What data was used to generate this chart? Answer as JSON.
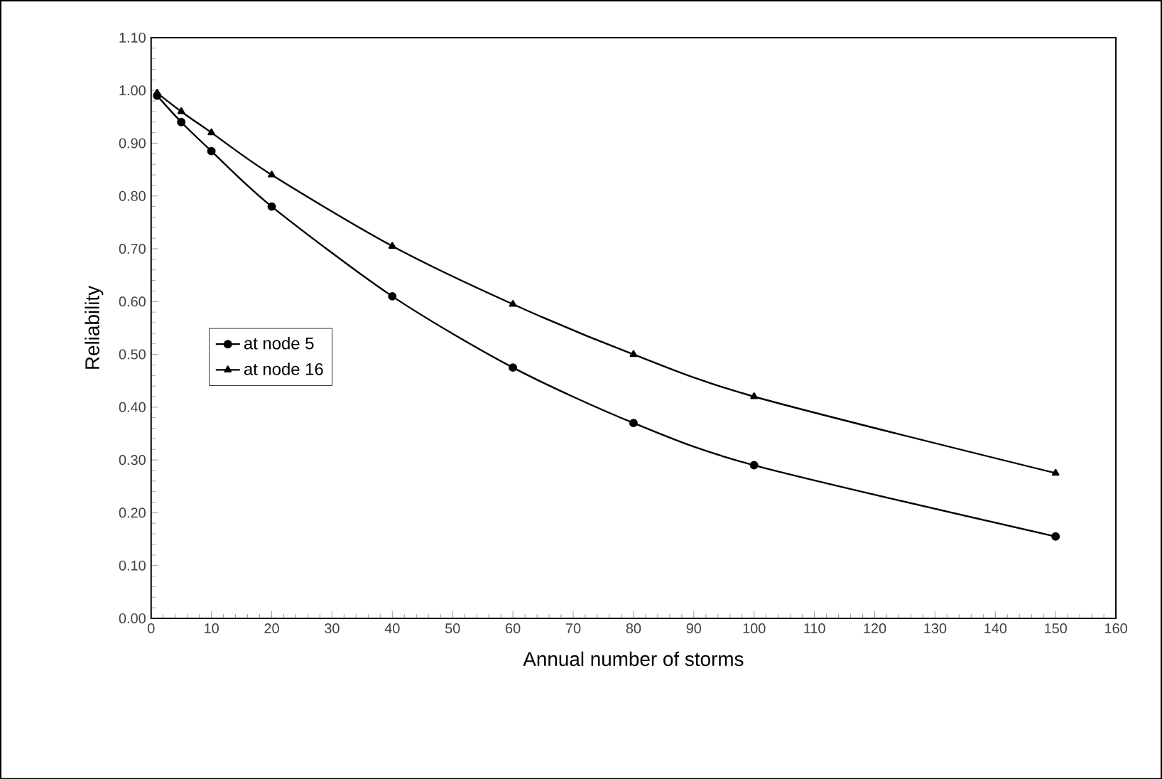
{
  "chart_data": {
    "type": "line",
    "xlabel": "Annual number of storms",
    "ylabel": "Reliability",
    "x": [
      1,
      5,
      10,
      20,
      40,
      60,
      80,
      100,
      150
    ],
    "series": [
      {
        "name": "at node 5",
        "color": "#000000",
        "marker": "circle",
        "values": [
          0.99,
          0.94,
          0.885,
          0.78,
          0.61,
          0.475,
          0.37,
          0.29,
          0.155
        ]
      },
      {
        "name": "at node 16",
        "color": "#000000",
        "marker": "triangle",
        "values": [
          0.995,
          0.96,
          0.92,
          0.84,
          0.705,
          0.595,
          0.5,
          0.42,
          0.275
        ]
      }
    ],
    "xlim": [
      0,
      160
    ],
    "xticks": [
      0,
      10,
      20,
      30,
      40,
      50,
      60,
      70,
      80,
      90,
      100,
      110,
      120,
      130,
      140,
      150,
      160
    ],
    "ylim": [
      0,
      1.1
    ],
    "yticks": [
      {
        "value": 0,
        "label": "0.00"
      },
      {
        "value": 0.1,
        "label": "0.10"
      },
      {
        "value": 0.2,
        "label": "0.20"
      },
      {
        "value": 0.3,
        "label": "0.30"
      },
      {
        "value": 0.4,
        "label": "0.40"
      },
      {
        "value": 0.5,
        "label": "0.50"
      },
      {
        "value": 0.6,
        "label": "0.60"
      },
      {
        "value": 0.7,
        "label": "0.70"
      },
      {
        "value": 0.8,
        "label": "0.80"
      },
      {
        "value": 0.9,
        "label": "0.90"
      },
      {
        "value": 1,
        "label": "1.00"
      },
      {
        "value": 1.1,
        "label": "1.10"
      }
    ],
    "grid": false,
    "legend": "left",
    "line_style": "solid"
  }
}
